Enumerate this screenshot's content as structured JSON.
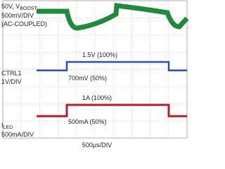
{
  "traces": {
    "vboost": {
      "label": {
        "main": "50V, V",
        "sub": "BOOST"
      },
      "scale": "500mV/DIV",
      "coupling": "(AC-COUPLED)"
    },
    "ctrl": {
      "label": "CTRL1",
      "scale": "1V/DIV",
      "high": "1.5V (100%)",
      "low": "700mV (50%)"
    },
    "iled": {
      "label": {
        "main": "I",
        "sub": "LED"
      },
      "scale": "500mA/DIV",
      "high": "1A (100%)",
      "low": "500mA (50%)"
    }
  },
  "timebase": "500μs/DIV"
}
